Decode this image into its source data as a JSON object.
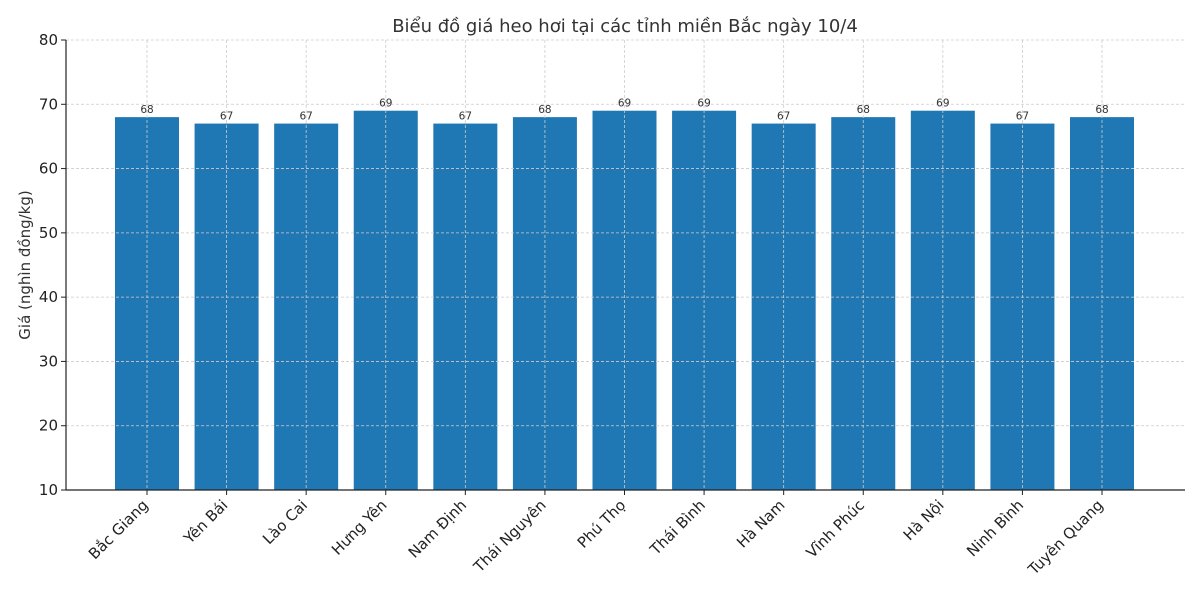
{
  "chart_data": {
    "type": "bar",
    "title": "Biểu đồ giá heo hơi tại các tỉnh miền Bắc ngày 10/4",
    "xlabel": "",
    "ylabel": "Giá (nghìn đồng/kg)",
    "ylim": [
      10,
      80
    ],
    "yticks": [
      10,
      20,
      30,
      40,
      50,
      60,
      70,
      80
    ],
    "grid": true,
    "legend": null,
    "bar_color": "#1f77b4",
    "categories": [
      "Bắc Giang",
      "Yên Bái",
      "Lào Cai",
      "Hưng Yên",
      "Nam Định",
      "Thái Nguyên",
      "Phú Thọ",
      "Thái Bình",
      "Hà Nam",
      "Vĩnh Phúc",
      "Hà Nội",
      "Ninh Bình",
      "Tuyên Quang"
    ],
    "values": [
      68,
      67,
      67,
      69,
      67,
      68,
      69,
      69,
      67,
      68,
      69,
      67,
      68
    ],
    "data_labels": [
      "68",
      "67",
      "67",
      "69",
      "67",
      "68",
      "69",
      "69",
      "67",
      "68",
      "69",
      "67",
      "68"
    ]
  }
}
